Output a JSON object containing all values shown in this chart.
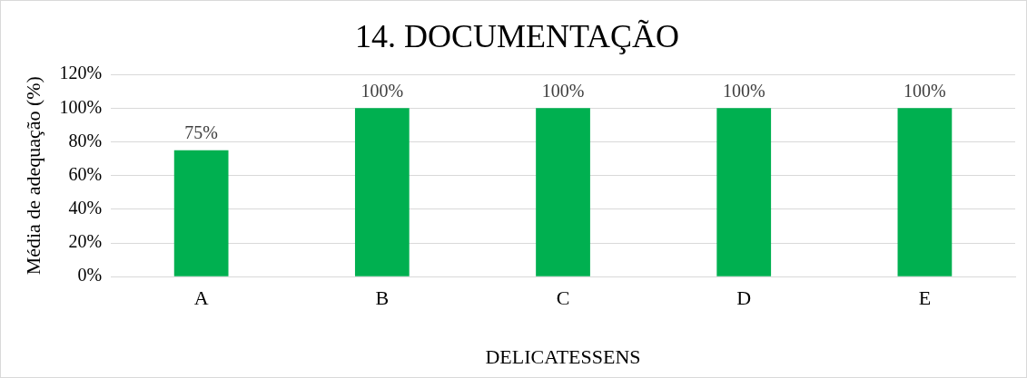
{
  "chart_data": {
    "type": "bar",
    "title": "14. DOCUMENTAÇÃO",
    "xlabel": "DELICATESSENS",
    "ylabel": "Média de adequação (%)",
    "categories": [
      "A",
      "B",
      "C",
      "D",
      "E"
    ],
    "values": [
      75,
      100,
      100,
      100,
      100
    ],
    "value_labels": [
      "75%",
      "100%",
      "100%",
      "100%",
      "100%"
    ],
    "color": "#00b050",
    "ylim": [
      0,
      120
    ],
    "yticks": [
      {
        "value": 0,
        "label": "0%"
      },
      {
        "value": 20,
        "label": "20%"
      },
      {
        "value": 40,
        "label": "40%"
      },
      {
        "value": 60,
        "label": "60%"
      },
      {
        "value": 80,
        "label": "80%"
      },
      {
        "value": 100,
        "label": "100%"
      },
      {
        "value": 120,
        "label": "120%"
      }
    ],
    "grid": "y",
    "legend": false
  }
}
